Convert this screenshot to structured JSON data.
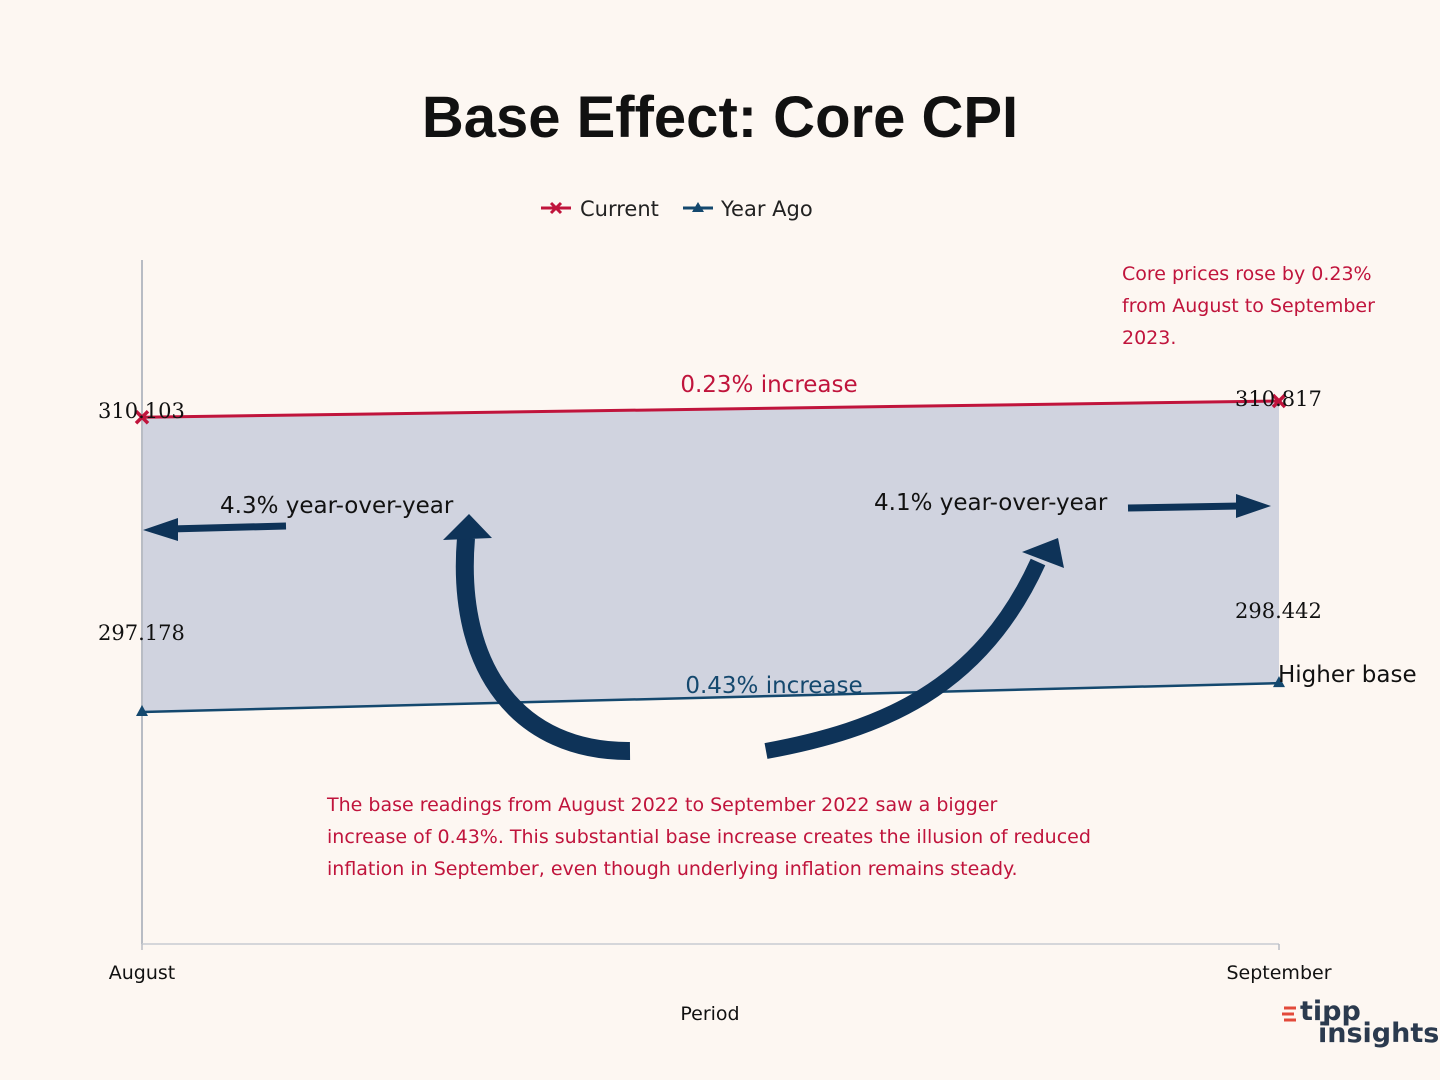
{
  "chart_data": {
    "type": "line",
    "title": "Base Effect: Core CPI",
    "xlabel": "Period",
    "ylabel": "",
    "categories": [
      "August",
      "September"
    ],
    "series": [
      {
        "name": "Current",
        "values": [
          310.103,
          310.817
        ],
        "color": "#c0143c",
        "marker": "x"
      },
      {
        "name": "Year Ago",
        "values": [
          297.178,
          298.442
        ],
        "color": "#14486e",
        "marker": "triangle"
      }
    ],
    "data_labels": {
      "current_aug": "310.103",
      "current_sep": "310.817",
      "yearago_aug": "297.178",
      "yearago_sep": "298.442"
    },
    "ylim": [
      287,
      317
    ],
    "shaded_band": "between series",
    "legend_position": "top-center",
    "annotations": {
      "increase_current": "0.23% increase",
      "increase_yearago": "0.43% increase",
      "yoy_august": "4.3% year-over-year",
      "yoy_september": "4.1% year-over-year",
      "higher_base": "Higher base",
      "core_note": [
        "Core prices rose by 0.23%",
        "from August to September",
        "2023."
      ],
      "base_note": [
        "The base readings from August 2022 to September 2022 saw a bigger",
        "increase of 0.43%. This substantial base increase creates the illusion of reduced",
        "inflation in September, even though underlying  inflation remains steady."
      ]
    }
  },
  "colors": {
    "current": "#c0143c",
    "year_ago": "#14486e",
    "band": "#d0d3df",
    "arrow": "#0e3358",
    "background": "#fdf7f2"
  },
  "logo": {
    "line1": "tipp",
    "line2": "insights"
  }
}
